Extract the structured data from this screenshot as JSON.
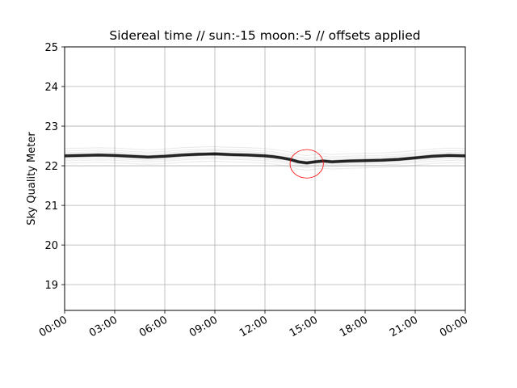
{
  "chart_data": {
    "type": "line",
    "title": "Sidereal time // sun:-15 moon:-5 // offsets applied",
    "xlabel": "",
    "ylabel": "Sky Quality Meter",
    "x_ticks": [
      "00:00",
      "03:00",
      "06:00",
      "09:00",
      "12:00",
      "15:00",
      "18:00",
      "21:00",
      "00:00"
    ],
    "x_range_hours": [
      0,
      24
    ],
    "ylim": [
      18.35,
      25
    ],
    "y_ticks": [
      19,
      20,
      21,
      22,
      23,
      24,
      25
    ],
    "grid": true,
    "series_color": "#000000",
    "highlight_color": "#ff0000",
    "series": [
      {
        "x": [
          0,
          1,
          2,
          3,
          4,
          5,
          6,
          7,
          8,
          9,
          10,
          11,
          12,
          12.5,
          13,
          13.5,
          14,
          14.5,
          15,
          15.5,
          16,
          17,
          18,
          19,
          20,
          21,
          22,
          23,
          24
        ],
        "values": [
          22.25,
          22.26,
          22.27,
          22.26,
          22.24,
          22.22,
          22.24,
          22.27,
          22.29,
          22.3,
          22.28,
          22.27,
          22.25,
          22.23,
          22.2,
          22.16,
          22.1,
          22.07,
          22.1,
          22.12,
          22.1,
          22.12,
          22.13,
          22.14,
          22.16,
          22.2,
          22.24,
          22.26,
          22.25
        ]
      }
    ],
    "annotation": {
      "type": "ellipse",
      "x": 14.5,
      "y": 22.05,
      "rx_hours": 1.0,
      "ry": 0.36
    }
  }
}
